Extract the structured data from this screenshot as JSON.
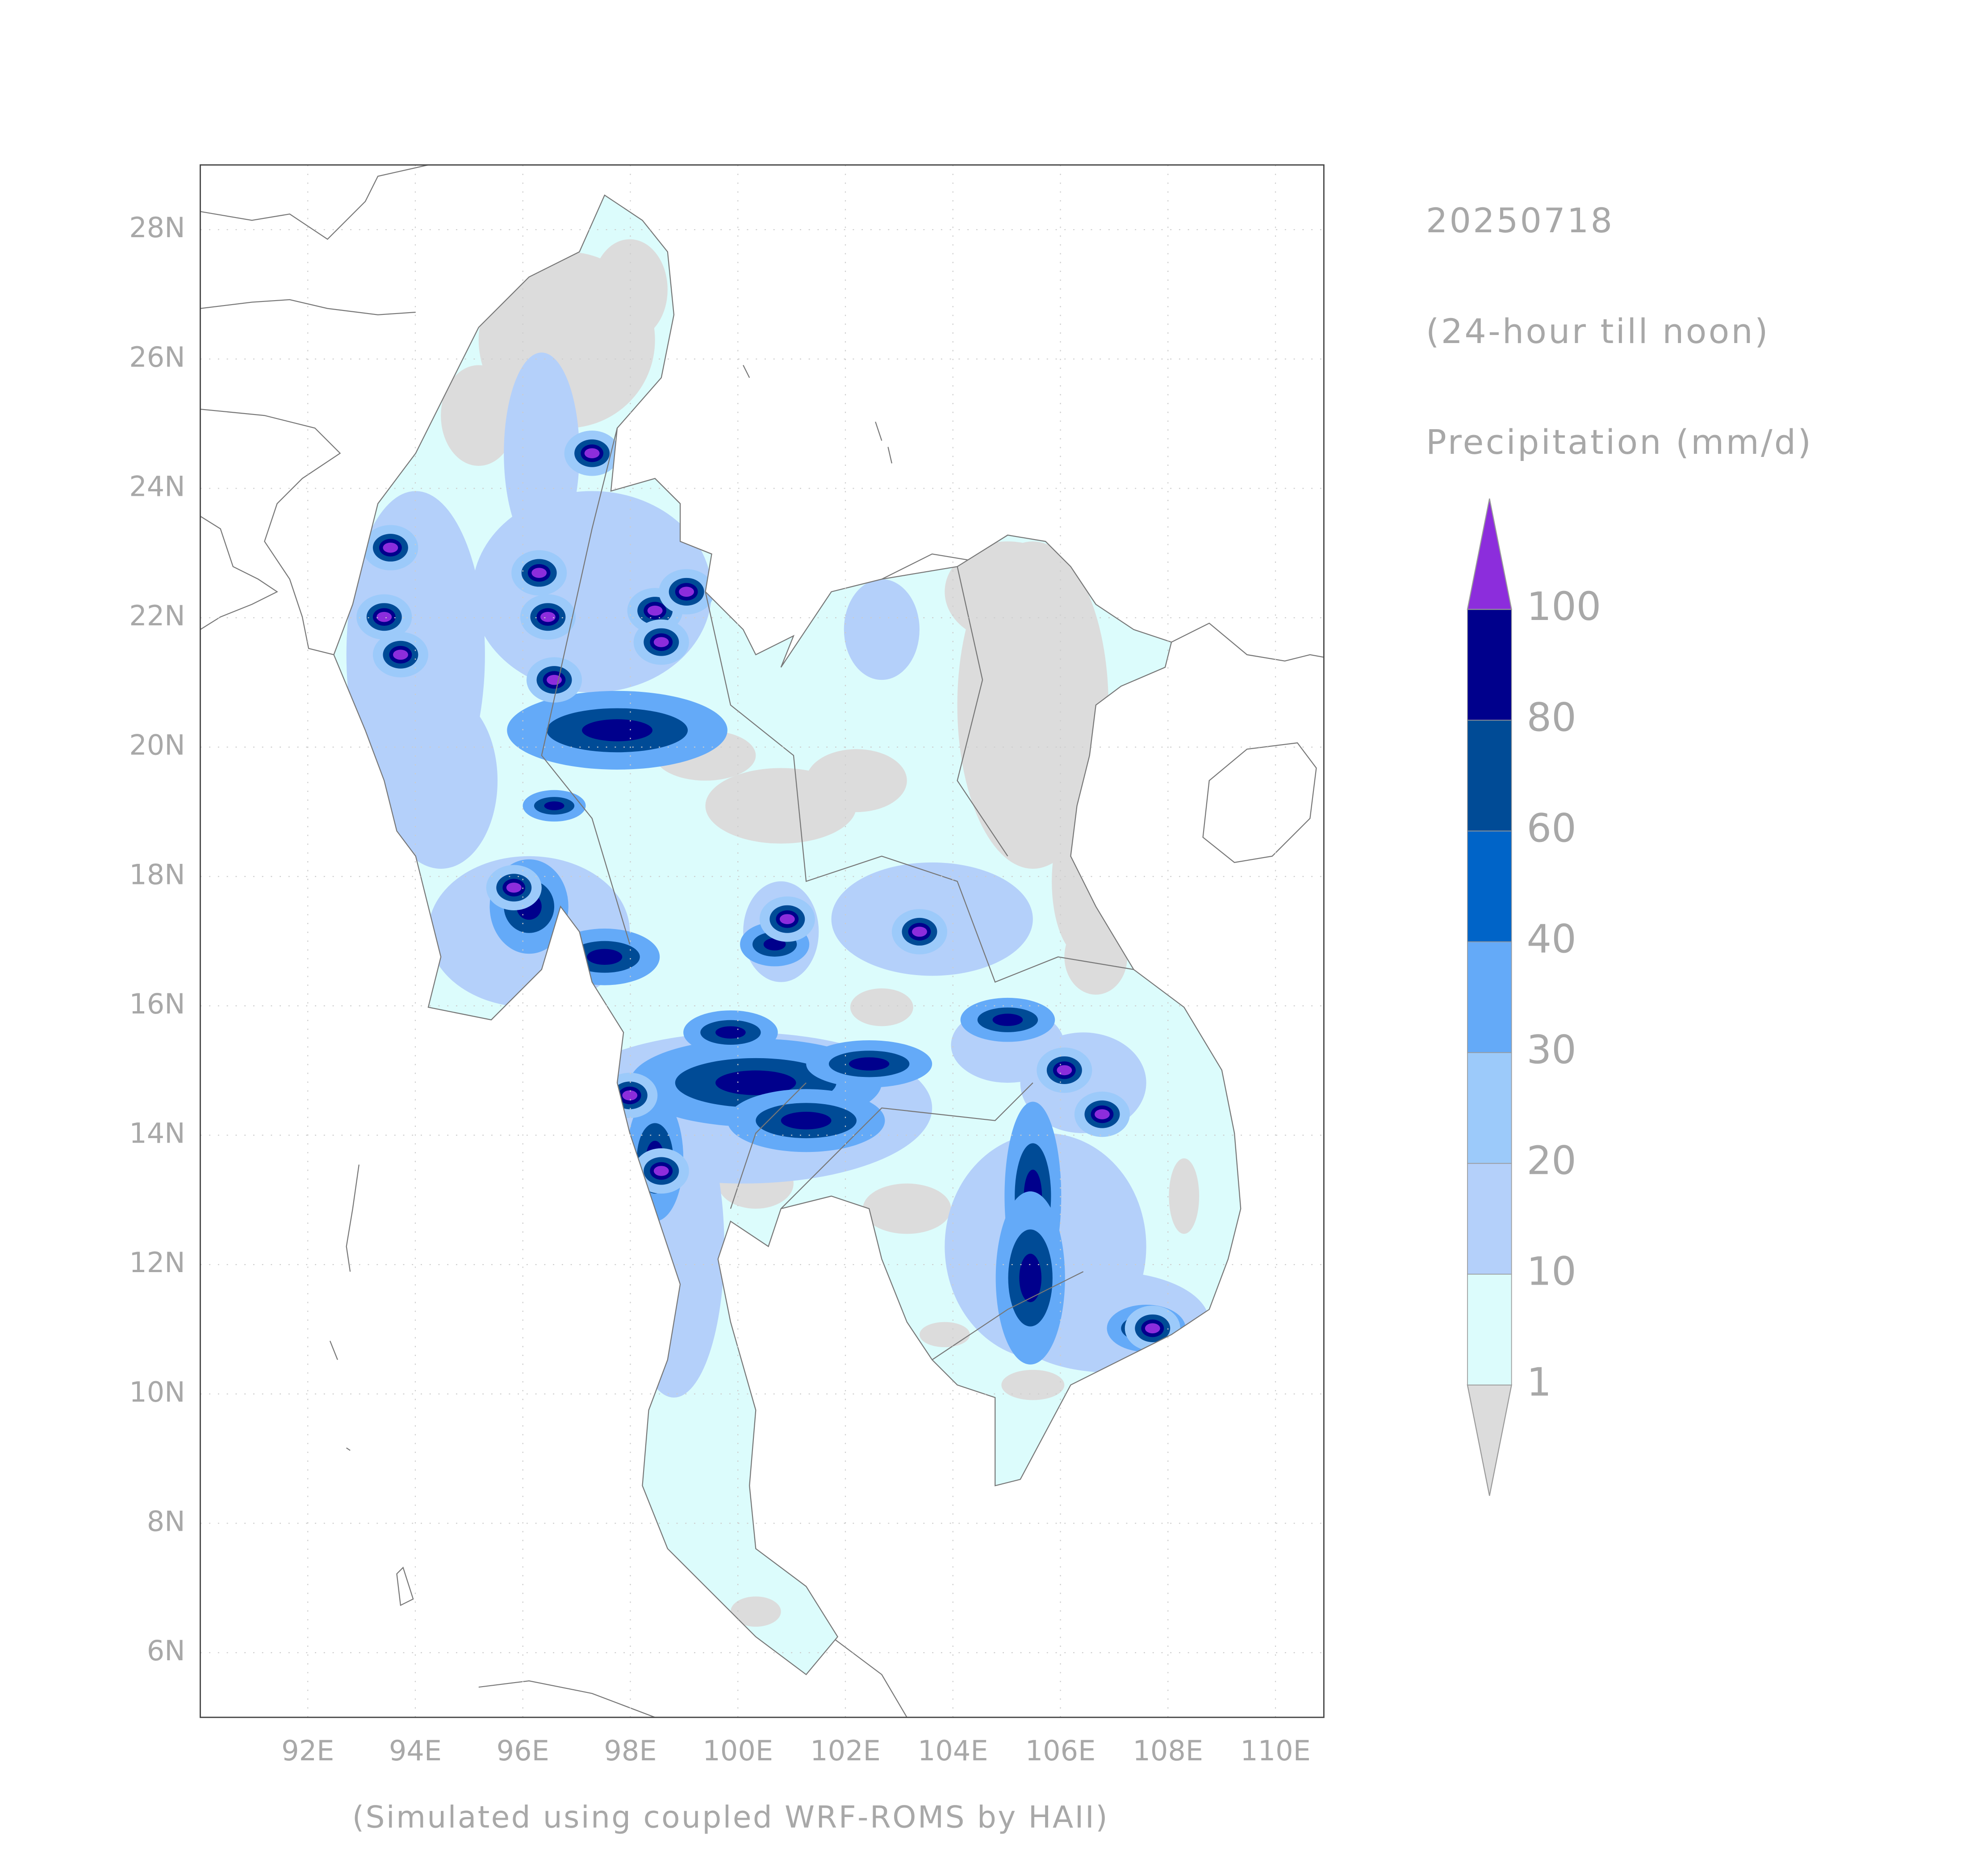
{
  "map": {
    "title": [
      "20250718",
      "(24-hour till noon)",
      "Precipitation (mm/d)"
    ],
    "footer": "(Simulated using coupled WRF-ROMS by HAII)",
    "xlim": [
      90,
      110.9
    ],
    "ylim": [
      5,
      29
    ],
    "xticks": [
      {
        "value": 92,
        "label": "92E"
      },
      {
        "value": 94,
        "label": "94E"
      },
      {
        "value": 96,
        "label": "96E"
      },
      {
        "value": 98,
        "label": "98E"
      },
      {
        "value": 100,
        "label": "100E"
      },
      {
        "value": 102,
        "label": "102E"
      },
      {
        "value": 104,
        "label": "104E"
      },
      {
        "value": 106,
        "label": "106E"
      },
      {
        "value": 108,
        "label": "108E"
      },
      {
        "value": 110,
        "label": "110E"
      }
    ],
    "yticks": [
      {
        "value": 6,
        "label": "6N"
      },
      {
        "value": 8,
        "label": "8N"
      },
      {
        "value": 10,
        "label": "10N"
      },
      {
        "value": 12,
        "label": "12N"
      },
      {
        "value": 14,
        "label": "14N"
      },
      {
        "value": 16,
        "label": "16N"
      },
      {
        "value": 18,
        "label": "18N"
      },
      {
        "value": 20,
        "label": "20N"
      },
      {
        "value": 22,
        "label": "22N"
      },
      {
        "value": 24,
        "label": "24N"
      },
      {
        "value": 26,
        "label": "26N"
      },
      {
        "value": 28,
        "label": "28N"
      }
    ],
    "colorbar": {
      "levels": [
        1,
        10,
        20,
        30,
        40,
        60,
        80,
        100
      ],
      "colors": [
        "#dcdcdc",
        "#dcfcfc",
        "#b4d0fa",
        "#9ccafa",
        "#64aaf8",
        "#0064c8",
        "#004b96",
        "#00008c",
        "#8c2ddc"
      ]
    }
  }
}
